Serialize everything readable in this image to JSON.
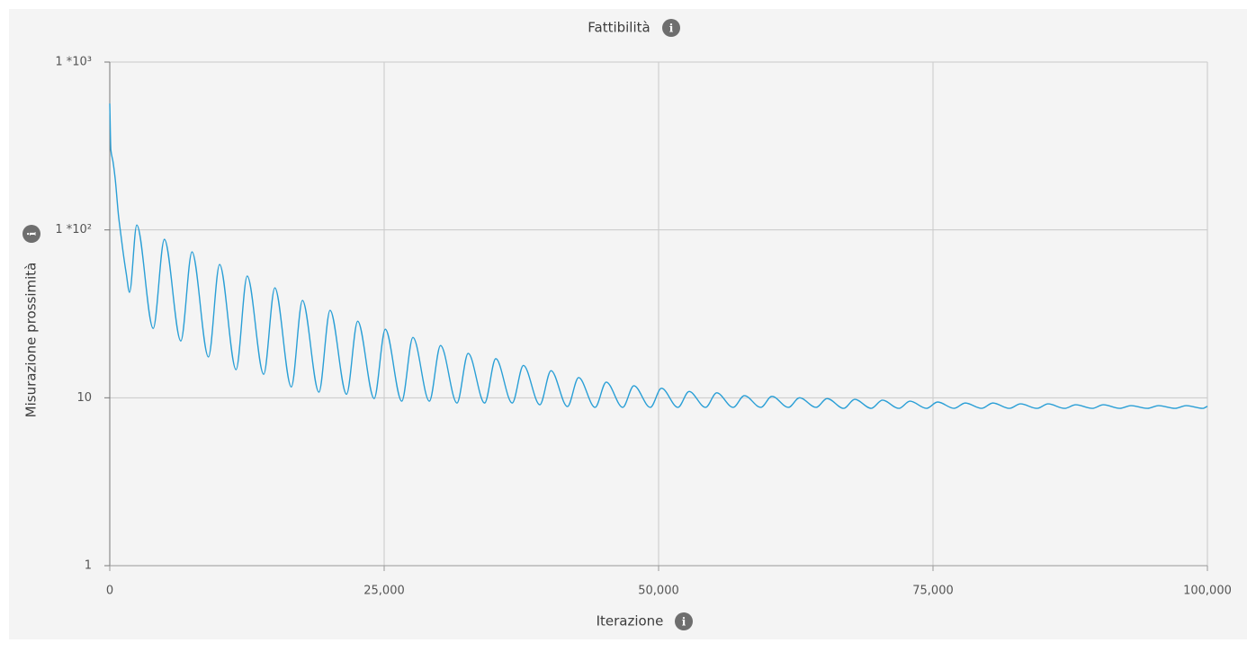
{
  "chart_data": {
    "type": "line",
    "title": "Fattibilità",
    "x_label": "Iterazione",
    "y_label": "Misurazione prossimità",
    "color": "#2a9fd6",
    "ylog": true,
    "grid": true,
    "xlim": [
      0,
      100000
    ],
    "ylim": [
      1,
      1000
    ],
    "xticks": [
      0,
      {
        "value": 25000,
        "label": "25,000"
      },
      {
        "value": 50000,
        "label": "50,000"
      },
      {
        "value": 75000,
        "label": "75,000"
      },
      {
        "value": 100000,
        "label": "100,000"
      }
    ],
    "yticks": [
      1,
      10,
      {
        "value": 100,
        "label": "1 *10²"
      },
      {
        "value": 1000,
        "label": "1 *10³"
      }
    ],
    "x": [
      0,
      100,
      300,
      500,
      800,
      1000,
      1200,
      1500,
      1800,
      2459,
      3959,
      4975,
      6475,
      7491,
      8991,
      10007,
      11507,
      12523,
      14023,
      15039,
      16539,
      17555,
      19055,
      20071,
      21571,
      22587,
      24087,
      25103,
      26603,
      27619,
      29119,
      30135,
      31635,
      32651,
      34151,
      35167,
      36667,
      37683,
      39183,
      40199,
      41699,
      42715,
      44215,
      45231,
      46731,
      47747,
      49247,
      50263,
      51763,
      52779,
      54279,
      55295,
      56795,
      57811,
      59311,
      60327,
      61827,
      62843,
      64343,
      65359,
      66859,
      67875,
      69375,
      70391,
      71891,
      72907,
      74407,
      75423,
      76923,
      77939,
      79439,
      80455,
      81955,
      82971,
      84471,
      85487,
      86987,
      88003,
      89503,
      90519,
      92019,
      93035,
      94535,
      95551,
      97051,
      98067,
      99567,
      100000
    ],
    "values": [
      566,
      300,
      254,
      200,
      121,
      95,
      75,
      55,
      42.5,
      107,
      25.9,
      87.9,
      21.8,
      74.0,
      17.5,
      62.3,
      14.7,
      53.1,
      13.8,
      45.2,
      11.6,
      38.0,
      10.8,
      33.2,
      10.5,
      28.6,
      9.9,
      25.6,
      9.55,
      22.9,
      9.55,
      20.5,
      9.31,
      18.4,
      9.31,
      17.1,
      9.31,
      15.6,
      9.09,
      14.5,
      8.87,
      13.2,
      8.77,
      12.4,
      8.77,
      11.8,
      8.77,
      11.4,
      8.77,
      10.9,
      8.77,
      10.7,
      8.77,
      10.3,
      8.77,
      10.2,
      8.77,
      10.0,
      8.77,
      9.9,
      8.65,
      9.79,
      8.65,
      9.68,
      8.65,
      9.55,
      8.65,
      9.44,
      8.65,
      9.31,
      8.65,
      9.31,
      8.65,
      9.2,
      8.65,
      9.2,
      8.65,
      9.09,
      8.65,
      9.09,
      8.65,
      8.98,
      8.65,
      8.98,
      8.65,
      8.98,
      8.65,
      8.9
    ]
  }
}
